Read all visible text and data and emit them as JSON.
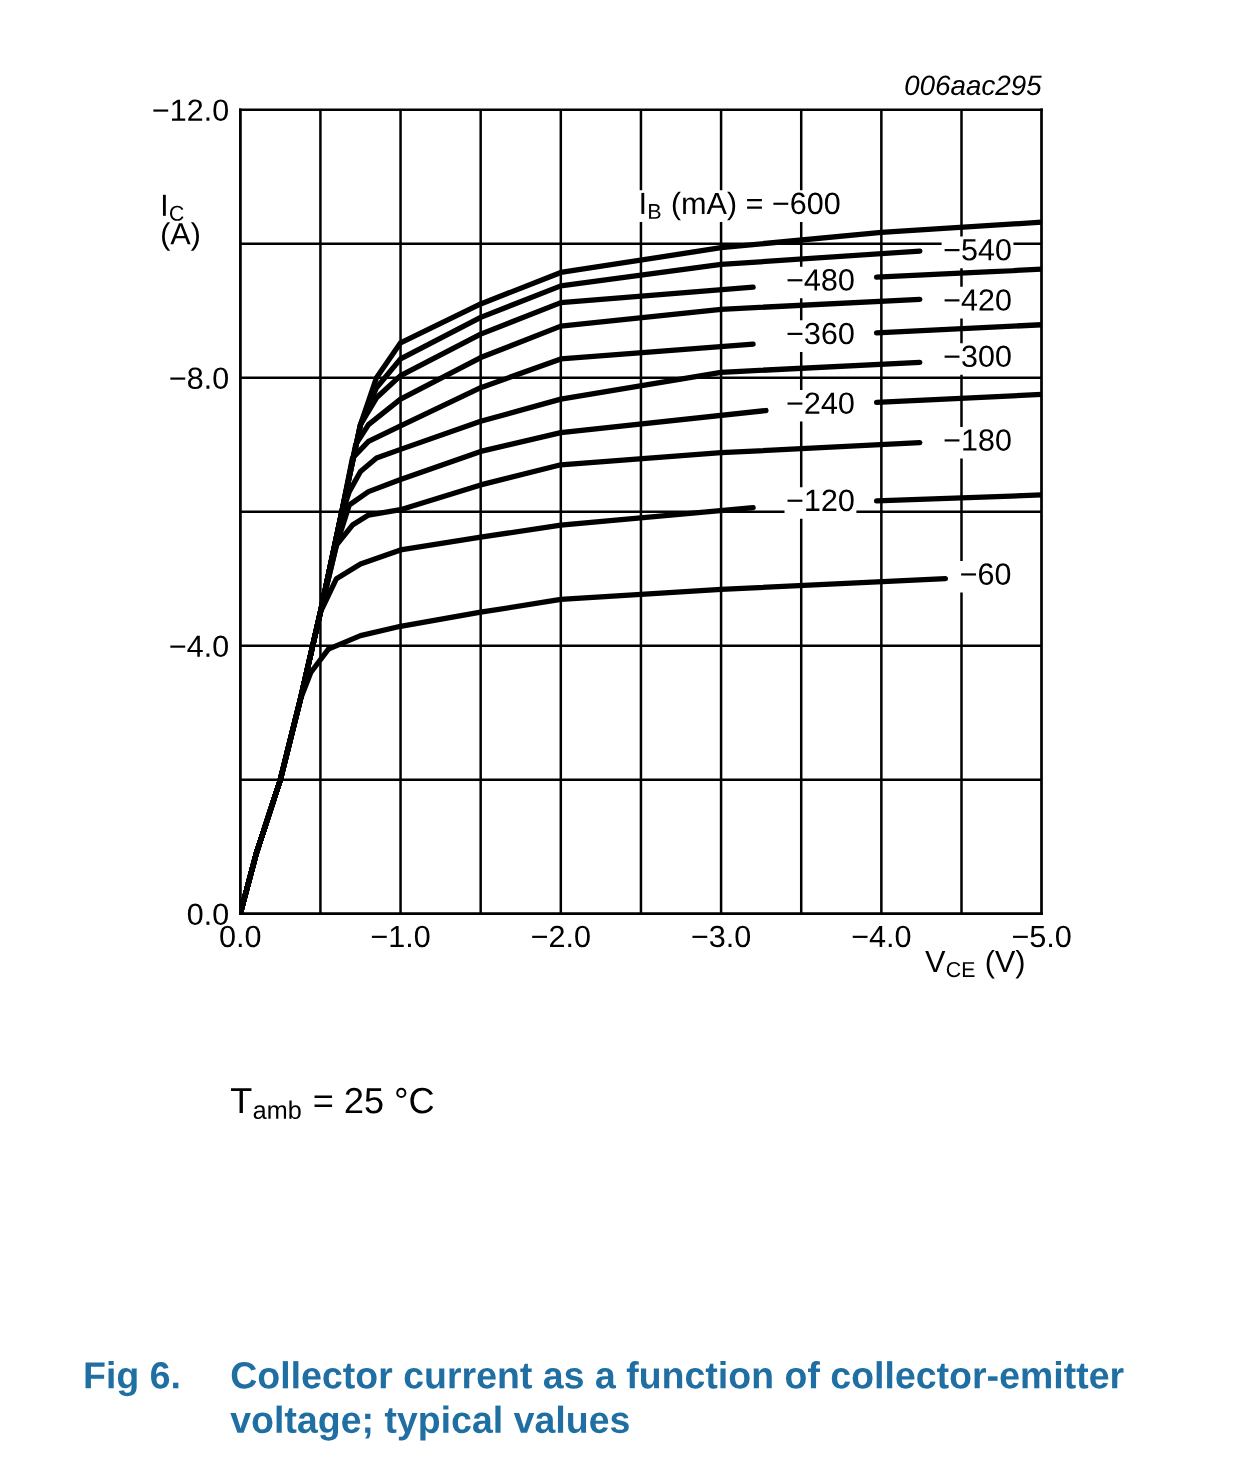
{
  "chart_data": {
    "type": "line",
    "title": "Fig 6.",
    "subtitle": "Collector current as a function of collector-emitter voltage; typical values",
    "xlabel": "V$_{CE}$ (V)",
    "ylabel": "I$_{C}$\n(A)",
    "xlim": [
      0,
      -5.0
    ],
    "ylim": [
      0,
      -12.0
    ],
    "xticks": [
      {
        "value": 0,
        "label": "0.0"
      },
      {
        "value": -0.5,
        "label": null
      },
      {
        "value": -1.0,
        "label": "−1.0"
      },
      {
        "value": -1.5,
        "label": null
      },
      {
        "value": -2.0,
        "label": "−2.0"
      },
      {
        "value": -2.5,
        "label": null
      },
      {
        "value": -3.0,
        "label": "−3.0"
      },
      {
        "value": -3.5,
        "label": null
      },
      {
        "value": -4.0,
        "label": "−4.0"
      },
      {
        "value": -4.5,
        "label": null
      },
      {
        "value": -5.0,
        "label": "−5.0"
      }
    ],
    "yticks": [
      {
        "value": 0,
        "label": "0.0"
      },
      {
        "value": -2.0,
        "label": null
      },
      {
        "value": -4.0,
        "label": "−4.0"
      },
      {
        "value": -6.0,
        "label": null
      },
      {
        "value": -8.0,
        "label": "−8.0"
      },
      {
        "value": -10.0,
        "label": null
      },
      {
        "value": -12.0,
        "label": "−12.0"
      }
    ],
    "grid": true,
    "marker": "none",
    "line_style": "solid",
    "series": [
      {
        "color": "#000000",
        "x": [
          0,
          -0.1,
          -0.25,
          -0.375,
          -0.44,
          -0.55,
          -0.75,
          -1,
          -1.5,
          -2,
          -3,
          -4.4
        ],
        "values": [
          0,
          -0.9,
          -2.0,
          -3.2,
          -3.6,
          -3.95,
          -4.15,
          -4.29,
          -4.5,
          -4.69,
          -4.84,
          -5.0
        ]
      },
      {
        "color": "#000000",
        "x": [
          0,
          -0.1,
          -0.25,
          -0.375,
          -0.5,
          -0.6,
          -0.75,
          -1,
          -1.5,
          -2,
          -3.2,
          -3.6,
          -3.97,
          -5
        ],
        "values": [
          0,
          -0.9,
          -2.0,
          -3.2,
          -4.5,
          -5.0,
          -5.22,
          -5.43,
          -5.62,
          -5.8,
          -6.06,
          null,
          -6.16,
          -6.25
        ]
      },
      {
        "color": "#000000",
        "x": [
          0,
          -0.1,
          -0.25,
          -0.375,
          -0.5,
          -0.6,
          -0.7,
          -0.8,
          -1,
          -1.5,
          -2,
          -3,
          -4.24
        ],
        "values": [
          0,
          -0.9,
          -2.0,
          -3.2,
          -4.5,
          -5.5,
          -5.8,
          -5.95,
          -6.03,
          -6.4,
          -6.7,
          -6.88,
          -7.03
        ]
      },
      {
        "color": "#000000",
        "x": [
          0,
          -0.1,
          -0.25,
          -0.375,
          -0.5,
          -0.6,
          -0.68,
          -0.8,
          -1,
          -1.5,
          -2,
          -3.28,
          -3.6,
          -3.97,
          -5
        ],
        "values": [
          0,
          -0.9,
          -2.0,
          -3.2,
          -4.5,
          -5.5,
          -6.1,
          -6.3,
          -6.48,
          -6.9,
          -7.18,
          -7.51,
          null,
          -7.63,
          -7.75
        ]
      },
      {
        "color": "#000000",
        "x": [
          0,
          -0.1,
          -0.25,
          -0.375,
          -0.5,
          -0.625,
          -0.68,
          -0.75,
          -0.85,
          -1,
          -1.5,
          -2,
          -3,
          -4.24
        ],
        "values": [
          0,
          -0.9,
          -2.0,
          -3.2,
          -4.5,
          -5.9,
          -6.3,
          -6.6,
          -6.8,
          -6.93,
          -7.35,
          -7.68,
          -8.08,
          -8.23
        ]
      },
      {
        "color": "#000000",
        "x": [
          0,
          -0.1,
          -0.25,
          -0.375,
          -0.5,
          -0.625,
          -0.7,
          -0.8,
          -1,
          -1.5,
          -2,
          -3.2,
          -3.6,
          -3.97,
          -5
        ],
        "values": [
          0,
          -0.9,
          -2.0,
          -3.2,
          -4.5,
          -5.9,
          -6.8,
          -7.05,
          -7.28,
          -7.85,
          -8.28,
          -8.5,
          null,
          -8.67,
          -8.79
        ]
      },
      {
        "color": "#000000",
        "x": [
          0,
          -0.1,
          -0.25,
          -0.375,
          -0.5,
          -0.625,
          -0.72,
          -0.8,
          -1,
          -1.5,
          -2,
          -3,
          -4.24
        ],
        "values": [
          0,
          -0.9,
          -2.0,
          -3.2,
          -4.5,
          -5.9,
          -7.0,
          -7.3,
          -7.68,
          -8.3,
          -8.77,
          -9.02,
          -9.17
        ]
      },
      {
        "color": "#000000",
        "x": [
          0,
          -0.1,
          -0.25,
          -0.375,
          -0.5,
          -0.625,
          -0.75,
          -0.85,
          -1,
          -1.5,
          -2,
          -3.2,
          -3.6,
          -3.97,
          -5
        ],
        "values": [
          0,
          -0.9,
          -2.0,
          -3.2,
          -4.5,
          -5.9,
          -7.3,
          -7.7,
          -8.03,
          -8.65,
          -9.12,
          -9.35,
          null,
          -9.5,
          -9.62
        ]
      },
      {
        "color": "#000000",
        "x": [
          0,
          -0.1,
          -0.25,
          -0.375,
          -0.5,
          -0.625,
          -0.75,
          -0.85,
          -1,
          -1.5,
          -2,
          -3,
          -4.24
        ],
        "values": [
          0,
          -0.9,
          -2.0,
          -3.2,
          -4.5,
          -5.9,
          -7.3,
          -7.85,
          -8.28,
          -8.9,
          -9.37,
          -9.69,
          -9.89
        ]
      },
      {
        "color": "#000000",
        "x": [
          0,
          -0.1,
          -0.25,
          -0.375,
          -0.5,
          -0.625,
          -0.75,
          -0.85,
          -1,
          -1.5,
          -2,
          -3,
          -4,
          -5
        ],
        "values": [
          0,
          -0.9,
          -2.0,
          -3.2,
          -4.5,
          -5.9,
          -7.3,
          -8.0,
          -8.52,
          -9.1,
          -9.57,
          -9.94,
          -10.17,
          -10.32
        ]
      }
    ],
    "annotations": [
      "006aac295",
      "T$_{amb}$ = 25 °C",
      "I$_{B}$ (mA) = −600",
      {
        "text": "−540",
        "x": -4.6,
        "y": -9.87
      },
      {
        "text": "−480",
        "x": -3.62,
        "y": -9.42
      },
      {
        "text": "−420",
        "x": -4.6,
        "y": -9.12
      },
      {
        "text": "−360",
        "x": -3.62,
        "y": -8.62
      },
      {
        "text": "−300",
        "x": -4.6,
        "y": -8.28
      },
      {
        "text": "−240",
        "x": -3.62,
        "y": -7.58
      },
      {
        "text": "−180",
        "x": -4.6,
        "y": -7.03
      },
      {
        "text": "−120",
        "x": -3.62,
        "y": -6.13
      },
      {
        "text": "−60",
        "x": -4.65,
        "y": -5.03
      }
    ]
  }
}
